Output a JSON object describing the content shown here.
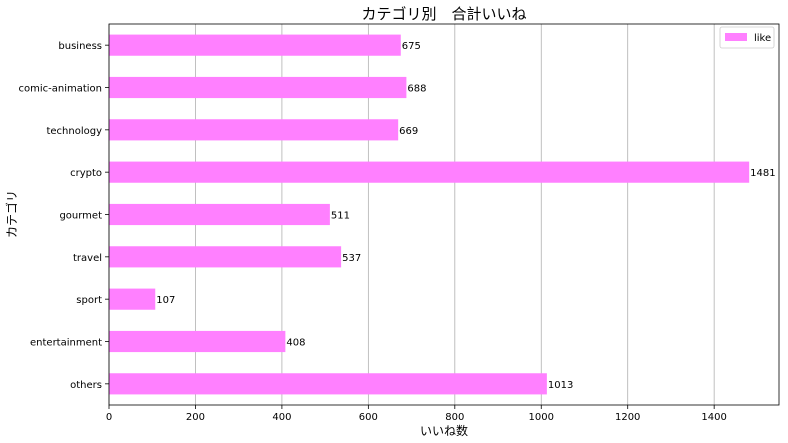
{
  "chart_data": {
    "type": "bar",
    "orientation": "horizontal",
    "title": "カテゴリ別　合計いいね",
    "xlabel": "いいね数",
    "ylabel": "カテゴリ",
    "categories": [
      "business",
      "comic-animation",
      "technology",
      "crypto",
      "gourmet",
      "travel",
      "sport",
      "entertainment",
      "others"
    ],
    "series": [
      {
        "name": "like",
        "values": [
          675,
          688,
          669,
          1481,
          511,
          537,
          107,
          408,
          1013
        ]
      }
    ],
    "xlim": [
      0,
      1550
    ],
    "xticks": [
      0,
      200,
      400,
      600,
      800,
      1000,
      1200,
      1400
    ],
    "grid": "vertical",
    "legend_position": "top-right",
    "bar_color": "#ff80ff"
  }
}
